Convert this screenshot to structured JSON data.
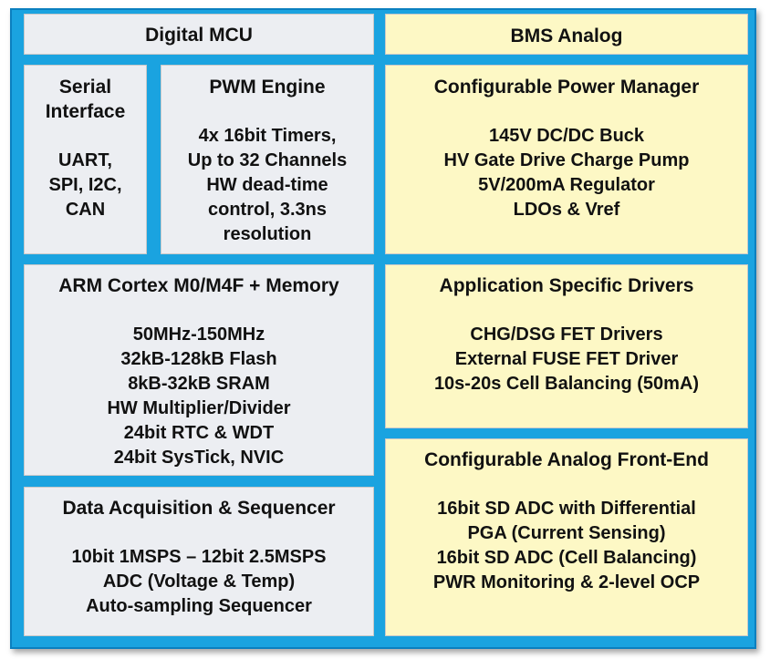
{
  "digital": {
    "header": "Digital MCU",
    "serial": {
      "title": [
        "Serial",
        "Interface"
      ],
      "lines": [
        "UART,",
        "SPI, I2C,",
        "CAN"
      ]
    },
    "pwm": {
      "title": "PWM Engine",
      "lines": [
        "4x 16bit Timers,",
        "Up to 32 Channels",
        "HW dead-time",
        "control, 3.3ns",
        "resolution"
      ]
    },
    "arm": {
      "title": "ARM Cortex M0/M4F + Memory",
      "lines": [
        "50MHz-150MHz",
        "32kB-128kB Flash",
        "8kB-32kB SRAM",
        "HW Multiplier/Divider",
        "24bit RTC & WDT",
        "24bit SysTick, NVIC"
      ]
    },
    "daq": {
      "title": "Data Acquisition & Sequencer",
      "lines": [
        "10bit 1MSPS – 12bit 2.5MSPS",
        "ADC (Voltage & Temp)",
        "Auto-sampling Sequencer"
      ]
    }
  },
  "analog": {
    "header": "BMS Analog",
    "power": {
      "title": "Configurable Power Manager",
      "lines": [
        "145V DC/DC Buck",
        "HV Gate Drive Charge Pump",
        "5V/200mA Regulator",
        "LDOs & Vref"
      ]
    },
    "drivers": {
      "title": "Application Specific Drivers",
      "lines": [
        "CHG/DSG FET Drivers",
        "External FUSE FET Driver",
        "10s-20s Cell Balancing (50mA)"
      ]
    },
    "afe": {
      "title": "Configurable Analog Front-End",
      "lines": [
        "16bit SD ADC with Differential",
        "PGA (Current Sensing)",
        "16bit SD ADC (Cell Balancing)",
        "PWR Monitoring & 2-level OCP"
      ]
    }
  },
  "colors": {
    "frame": "#1aa3e0",
    "digital_fill": "#eceef2",
    "analog_fill": "#fdf8c5"
  }
}
